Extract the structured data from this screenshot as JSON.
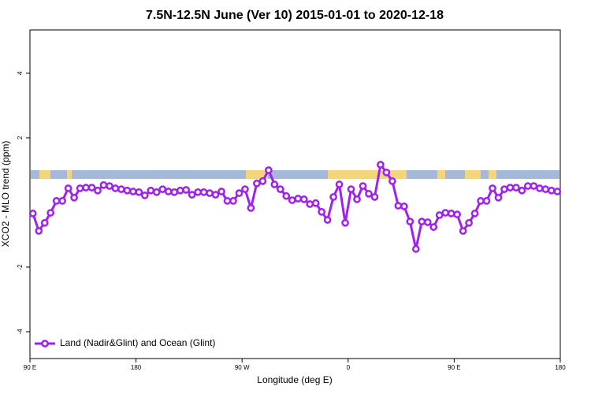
{
  "chart_data": {
    "type": "line",
    "title": "7.5N-12.5N June (Ver 10)   2015-01-01 to 2020-12-18",
    "x_label": "Longitude (deg E)",
    "y_label": "XCO2 - MLO trend (ppm)",
    "xlim": [
      90,
      540
    ],
    "xticks": [
      {
        "value": 90,
        "label": "90 E"
      },
      180,
      {
        "value": 270,
        "label": "90 W"
      },
      {
        "value": 360,
        "label": "0"
      },
      {
        "value": 450,
        "label": "90 E"
      },
      {
        "value": 540,
        "label": "180"
      }
    ],
    "ylim": [
      -4.83,
      5.34
    ],
    "yticks": [
      -4,
      -2,
      2,
      4
    ],
    "x": [
      92.5,
      97.5,
      102.5,
      107.5,
      112.5,
      117.5,
      122.5,
      127.5,
      132.5,
      137.5,
      142.5,
      147.5,
      152.5,
      157.5,
      162.5,
      167.5,
      172.5,
      177.5,
      182.5,
      187.5,
      192.5,
      197.5,
      202.5,
      207.5,
      212.5,
      217.5,
      222.5,
      227.5,
      232.5,
      237.5,
      242.5,
      247.5,
      252.5,
      257.5,
      262.5,
      267.5,
      272.5,
      277.5,
      282.5,
      287.5,
      292.5,
      297.5,
      302.5,
      307.5,
      312.5,
      317.5,
      322.5,
      327.5,
      332.5,
      337.5,
      342.5,
      347.5,
      352.5,
      357.5,
      362.5,
      367.5,
      372.5,
      377.5,
      382.5,
      387.5,
      392.5,
      397.5,
      402.5,
      407.5,
      412.5,
      417.5,
      422.5,
      427.5,
      432.5,
      437.5,
      442.5,
      447.5,
      452.5,
      457.5,
      462.5,
      467.5,
      472.5,
      477.5,
      482.5,
      487.5,
      492.5,
      497.5,
      502.5,
      507.5,
      512.5,
      517.5,
      522.5,
      527.5,
      532.5,
      537.5
    ],
    "series": [
      {
        "name": "Land (Nadir&Glint) and Ocean (Glint)",
        "color": "#a020f0",
        "values": [
          -0.34,
          -0.88,
          -0.63,
          -0.32,
          0.05,
          0.05,
          0.44,
          0.15,
          0.44,
          0.46,
          0.46,
          0.37,
          0.54,
          0.51,
          0.44,
          0.41,
          0.37,
          0.34,
          0.32,
          0.22,
          0.37,
          0.32,
          0.41,
          0.34,
          0.32,
          0.37,
          0.39,
          0.24,
          0.32,
          0.32,
          0.29,
          0.24,
          0.34,
          0.05,
          0.05,
          0.29,
          0.41,
          -0.17,
          0.59,
          0.66,
          1.0,
          0.56,
          0.41,
          0.2,
          0.07,
          0.12,
          0.1,
          -0.05,
          -0.02,
          -0.29,
          -0.54,
          0.17,
          0.56,
          -0.63,
          0.41,
          0.1,
          0.51,
          0.27,
          0.17,
          1.17,
          0.93,
          0.66,
          -0.1,
          -0.12,
          -0.59,
          -1.44,
          -0.59,
          -0.61,
          -0.76,
          -0.39,
          -0.32,
          -0.34,
          -0.37,
          -0.88,
          -0.63,
          -0.34,
          0.05,
          0.05,
          0.44,
          0.15,
          0.41,
          0.46,
          0.46,
          0.37,
          0.51,
          0.51,
          0.44,
          0.41,
          0.37,
          0.34
        ]
      }
    ],
    "legend": "bottom-left"
  }
}
